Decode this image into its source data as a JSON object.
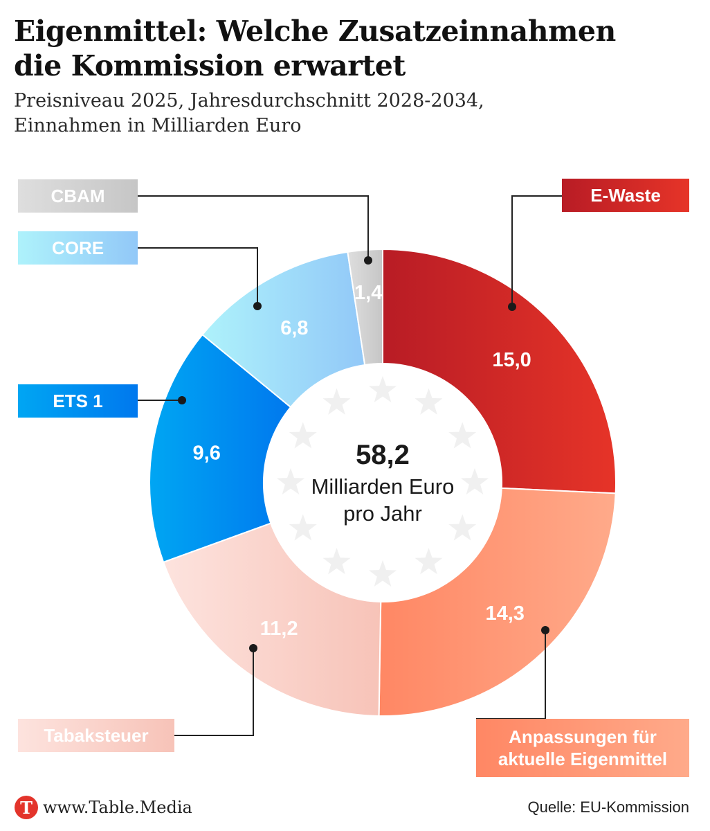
{
  "header": {
    "title_line1": "Eigenmittel: Welche Zusatzeinnahmen",
    "title_line2": "die Kommission erwartet",
    "subtitle_line1": "Preisniveau 2025, Jahresdurchschnitt 2028-2034,",
    "subtitle_line2": "Einnahmen in Milliarden Euro"
  },
  "chart_data": {
    "type": "pie",
    "title": "Eigenmittel: Welche Zusatzeinnahmen die Kommission erwartet",
    "unit": "Milliarden Euro",
    "total_value": "58,2",
    "total_line1": "Milliarden Euro",
    "total_line2": "pro Jahr",
    "slices": [
      {
        "label": "E-Waste",
        "value": 15.0,
        "display": "15,0",
        "color_start": "#b81c25",
        "color_end": "#e63428"
      },
      {
        "label": "Anpassungen für aktuelle Eigenmittel",
        "label_line1": "Anpassungen für",
        "label_line2": "aktuelle Eigenmittel",
        "value": 14.3,
        "display": "14,3",
        "color_start": "#ff8764",
        "color_end": "#ffaa8a"
      },
      {
        "label": "Tabaksteuer",
        "value": 11.2,
        "display": "11,2",
        "color_start": "#fde3de",
        "color_end": "#f7c3b8"
      },
      {
        "label": "ETS 1",
        "value": 9.6,
        "display": "9,6",
        "color_start": "#00a6f3",
        "color_end": "#0078ee"
      },
      {
        "label": "CORE",
        "value": 6.8,
        "display": "6,8",
        "color_start": "#aef2fb",
        "color_end": "#92c8f8"
      },
      {
        "label": "CBAM",
        "value": 1.4,
        "display": "1,4",
        "color_start": "#dedede",
        "color_end": "#c6c6c6"
      }
    ]
  },
  "footer": {
    "logo_letter": "T",
    "url": "www.Table.Media",
    "source": "Quelle: EU-Kommission"
  }
}
